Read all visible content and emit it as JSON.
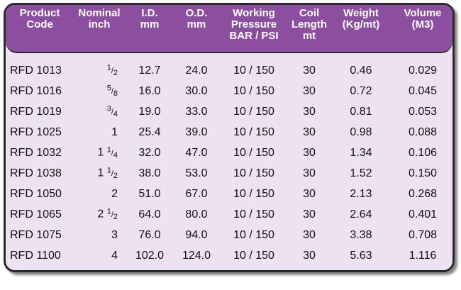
{
  "header": {
    "columns": [
      {
        "lines": [
          "Product",
          "Code"
        ]
      },
      {
        "lines": [
          "Nominal",
          "inch"
        ]
      },
      {
        "lines": [
          "I.D.",
          "mm"
        ]
      },
      {
        "lines": [
          "O.D.",
          "mm"
        ]
      },
      {
        "lines": [
          "Working",
          "Pressure",
          "BAR / PSI"
        ]
      },
      {
        "lines": [
          "Coil",
          "Length",
          "mt"
        ]
      },
      {
        "lines": [
          "Weight",
          "(Kg/mt)"
        ]
      },
      {
        "lines": [
          "Volume",
          "(M3)"
        ]
      }
    ]
  },
  "table": {
    "rows": [
      [
        "RFD 1013",
        "1/2",
        "12.7",
        "24.0",
        "10 / 150",
        "30",
        "0.46",
        "0.029"
      ],
      [
        "RFD 1016",
        "5/8",
        "16.0",
        "30.0",
        "10 / 150",
        "30",
        "0.72",
        "0.045"
      ],
      [
        "RFD 1019",
        "3/4",
        "19.0",
        "33.0",
        "10 / 150",
        "30",
        "0.81",
        "0.053"
      ],
      [
        "RFD 1025",
        "1",
        "25.4",
        "39.0",
        "10 / 150",
        "30",
        "0.98",
        "0.088"
      ],
      [
        "RFD 1032",
        "1 1/4",
        "32.0",
        "47.0",
        "10 / 150",
        "30",
        "1.34",
        "0.106"
      ],
      [
        "RFD 1038",
        "1 1/2",
        "38.0",
        "53.0",
        "10 / 150",
        "30",
        "1.52",
        "0.150"
      ],
      [
        "RFD 1050",
        "2",
        "51.0",
        "67.0",
        "10 / 150",
        "30",
        "2.13",
        "0.268"
      ],
      [
        "RFD 1065",
        "2 1/2",
        "64.0",
        "80.0",
        "10 / 150",
        "30",
        "2.64",
        "0.401"
      ],
      [
        "RFD 1075",
        "3",
        "76.0",
        "94.0",
        "10 / 150",
        "30",
        "3.38",
        "0.708"
      ],
      [
        "RFD 1100",
        "4",
        "102.0",
        "124.0",
        "10 / 150",
        "30",
        "5.63",
        "1.116"
      ]
    ]
  }
}
